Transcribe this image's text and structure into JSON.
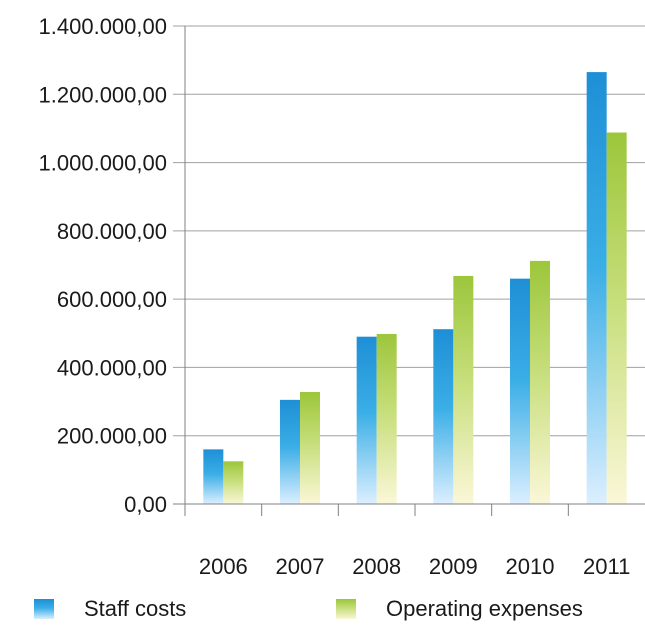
{
  "chart_data": {
    "type": "bar",
    "categories": [
      "2006",
      "2007",
      "2008",
      "2009",
      "2010",
      "2011"
    ],
    "series": [
      {
        "name": "Staff costs",
        "values": [
          160000,
          305000,
          490000,
          512000,
          660000,
          1265000
        ]
      },
      {
        "name": "Operating expenses",
        "values": [
          125000,
          328000,
          498000,
          668000,
          712000,
          1088000
        ]
      }
    ],
    "y_tick_labels": [
      "0,00",
      "200.000,00",
      "400.000,00",
      "600.000,00",
      "800.000,00",
      "1.000.000,00",
      "1.200.000,00",
      "1.400.000,00"
    ],
    "y_ticks": [
      0,
      200000,
      400000,
      600000,
      800000,
      1000000,
      1200000,
      1400000
    ],
    "ylim": [
      0,
      1400000
    ],
    "grid": true,
    "legend_position": "bottom",
    "colors": {
      "staff_top": "#1e8fd6",
      "staff_bottom": "#dcefff",
      "opex_top": "#9cc63b",
      "opex_bottom": "#fbf7d8",
      "grid": "#a0a0a0",
      "axis": "#808080"
    }
  },
  "legend": {
    "items": [
      {
        "label": "Staff costs"
      },
      {
        "label": "Operating expenses"
      }
    ]
  }
}
